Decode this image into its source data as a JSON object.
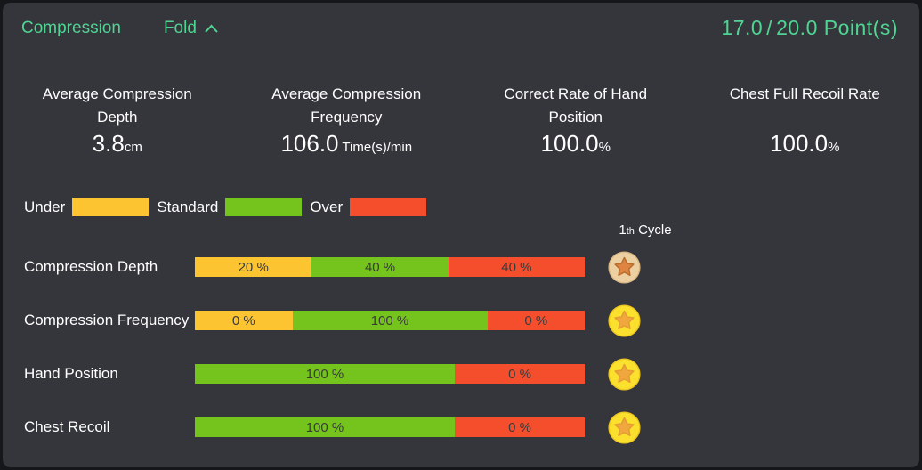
{
  "panel": {
    "title": "Compression",
    "fold_label": "Fold",
    "score": {
      "earned": "17.0",
      "separator": "/",
      "total": "20.0",
      "unit": "Point(s)"
    }
  },
  "stats": [
    {
      "title": "Average Compression Depth",
      "value": "3.8",
      "unit": "cm"
    },
    {
      "title": "Average Compression Frequency",
      "value": "106.0",
      "unit": " Time(s)/min"
    },
    {
      "title": "Correct Rate of Hand Position",
      "value": "100.0",
      "unit": "%"
    },
    {
      "title": "Chest Full Recoil Rate",
      "value": "100.0",
      "unit": "%"
    }
  ],
  "legend": [
    {
      "label": "Under",
      "key": "under"
    },
    {
      "label": "Standard",
      "key": "standard"
    },
    {
      "label": "Over",
      "key": "over"
    }
  ],
  "cycle_header": {
    "number": "1",
    "ordinal": "th",
    "label": " Cycle"
  },
  "rows": [
    {
      "label": "Compression Depth",
      "medal": "bronze",
      "segments": [
        {
          "name": "under",
          "value": 20,
          "text": "20 %"
        },
        {
          "name": "standard",
          "value": 40,
          "text": "40 %"
        },
        {
          "name": "over",
          "value": 40,
          "text": "40 %"
        }
      ]
    },
    {
      "label": "Compression Frequency",
      "medal": "gold",
      "segments": [
        {
          "name": "under",
          "value": 0,
          "text": "0 %"
        },
        {
          "name": "standard",
          "value": 100,
          "text": "100 %"
        },
        {
          "name": "over",
          "value": 0,
          "text": "0 %"
        }
      ]
    },
    {
      "label": "Hand Position",
      "medal": "gold",
      "segments": [
        {
          "name": "standard",
          "value": 100,
          "text": "100 %"
        },
        {
          "name": "over",
          "value": 0,
          "text": "0 %"
        }
      ]
    },
    {
      "label": "Chest Recoil",
      "medal": "gold",
      "segments": [
        {
          "name": "standard",
          "value": 100,
          "text": "100 %"
        },
        {
          "name": "over",
          "value": 0,
          "text": "0 %"
        }
      ]
    }
  ],
  "colors": {
    "accent": "#4fd492",
    "panel_bg": "#35363c",
    "border": "#16171b",
    "text": "#ffffff",
    "bar_text": "#3b3b3b",
    "under": "#fcc431",
    "standard": "#74c41d",
    "over": "#f44e2c",
    "medal": {
      "gold": {
        "circle": "#fbe02d",
        "circle_stroke": "#eec822",
        "star": "#f0a73e",
        "star_stroke": "#e59c33"
      },
      "bronze": {
        "circle": "#ecd0a2",
        "circle_stroke": "#dcba85",
        "star": "#df8441",
        "star_stroke": "#b96d2d"
      }
    }
  },
  "chart_data": {
    "type": "bar",
    "orientation": "horizontal-stacked",
    "title": "Compression",
    "cycle": "1th Cycle",
    "unit": "%",
    "categories": [
      "Compression Depth",
      "Compression Frequency",
      "Hand Position",
      "Chest Recoil"
    ],
    "series": [
      {
        "name": "Under",
        "color": "#fcc431",
        "values": [
          20,
          0,
          null,
          null
        ]
      },
      {
        "name": "Standard",
        "color": "#74c41d",
        "values": [
          40,
          100,
          100,
          100
        ]
      },
      {
        "name": "Over",
        "color": "#f44e2c",
        "values": [
          40,
          0,
          0,
          0
        ]
      }
    ],
    "medals": [
      "bronze",
      "gold",
      "gold",
      "gold"
    ],
    "summary": [
      {
        "label": "Average Compression Depth",
        "value": 3.8,
        "unit": "cm"
      },
      {
        "label": "Average Compression Frequency",
        "value": 106.0,
        "unit": "Time(s)/min"
      },
      {
        "label": "Correct Rate of Hand Position",
        "value": 100.0,
        "unit": "%"
      },
      {
        "label": "Chest Full Recoil Rate",
        "value": 100.0,
        "unit": "%"
      }
    ],
    "score": {
      "earned": 17.0,
      "total": 20.0,
      "unit": "Point(s)"
    }
  }
}
